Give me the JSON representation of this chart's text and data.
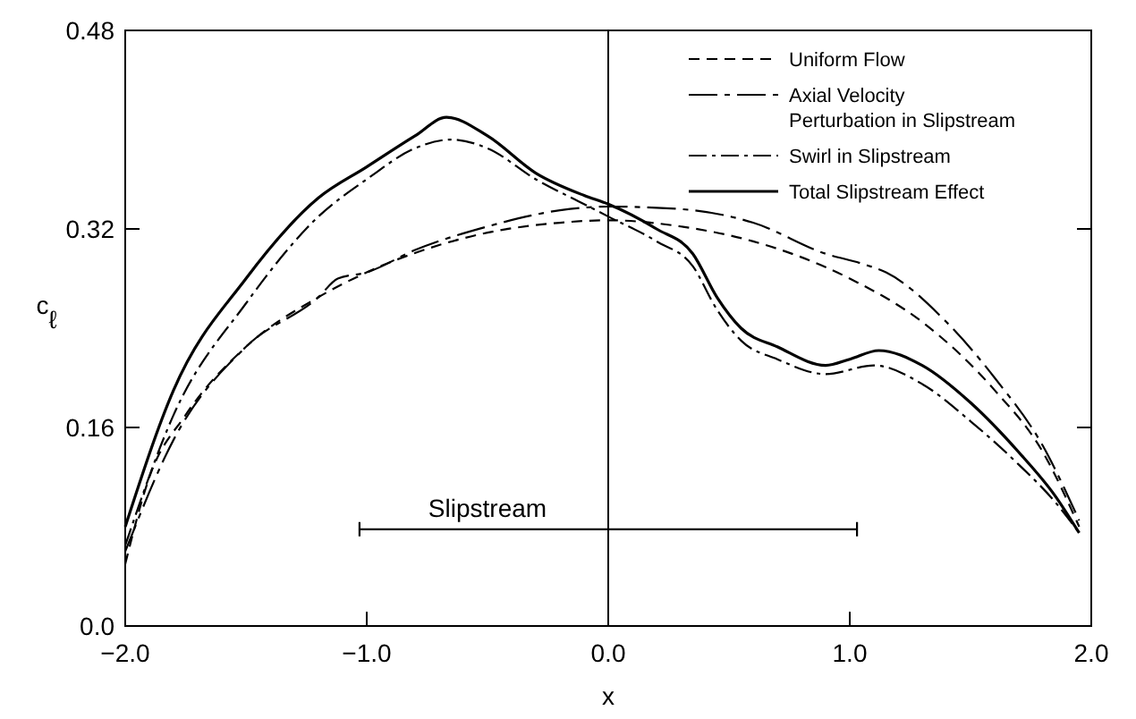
{
  "chart_data": {
    "type": "line",
    "xlabel": "x",
    "ylabel": "c$_{ℓ}$",
    "xlim": [
      -2,
      2
    ],
    "ylim": [
      0,
      0.48
    ],
    "xticks": [
      {
        "value": -2,
        "label": "−2.0"
      },
      {
        "value": -1,
        "label": "−1.0"
      },
      {
        "value": 0,
        "label": "0.0"
      },
      {
        "value": 1,
        "label": "1.0"
      },
      {
        "value": 2,
        "label": "2.0"
      }
    ],
    "yticks": [
      {
        "value": 0,
        "label": "0.0"
      },
      0.16,
      0.32,
      0.48
    ],
    "grid": false,
    "legend": "top right",
    "marker": "none",
    "ref_lines": [
      {
        "axis": "x",
        "value": 0,
        "label": null,
        "color": "#000000"
      }
    ],
    "annotations": [
      {
        "text": "Slipstream",
        "x": -0.5,
        "y": 0.078
      }
    ],
    "series": [
      {
        "color": "#000000",
        "line_style": "solid",
        "x": [
          -1.03,
          1.03
        ],
        "values": [
          0.078,
          0.078
        ]
      },
      {
        "name": "Uniform Flow",
        "color": "#000000",
        "line_style": "dashed",
        "x": [
          -2,
          -1.9,
          -1.75,
          -1.5,
          -1.2,
          -1,
          -0.7,
          -0.5,
          -0.2,
          0,
          0.3,
          0.6,
          1,
          1.3,
          1.6,
          1.8,
          1.95
        ],
        "values": [
          0.05,
          0.12,
          0.17,
          0.225,
          0.265,
          0.285,
          0.307,
          0.317,
          0.325,
          0.327,
          0.322,
          0.31,
          0.28,
          0.245,
          0.19,
          0.14,
          0.08
        ]
      },
      {
        "name": "Axial Velocity\nPerturbation in Slipstream",
        "color": "#000000",
        "line_style": "longdash",
        "x": [
          -2,
          -1.8,
          -1.5,
          -1.2,
          -1.12,
          -1,
          -0.8,
          -0.5,
          -0.2,
          0,
          0.3,
          0.6,
          0.9,
          1.05,
          1.15,
          1.4,
          1.6,
          1.8,
          1.95
        ],
        "values": [
          0.06,
          0.15,
          0.225,
          0.265,
          0.28,
          0.285,
          0.303,
          0.322,
          0.335,
          0.338,
          0.336,
          0.325,
          0.3,
          0.292,
          0.285,
          0.245,
          0.2,
          0.145,
          0.085
        ]
      },
      {
        "name": "Swirl in Slipstream",
        "color": "#000000",
        "line_style": "dashdot",
        "x": [
          -2,
          -1.8,
          -1.5,
          -1.2,
          -1,
          -0.8,
          -0.65,
          -0.5,
          -0.3,
          -0.1,
          0,
          0.2,
          0.35,
          0.45,
          0.55,
          0.7,
          0.9,
          1.1,
          1.3,
          1.5,
          1.7,
          1.85,
          1.95
        ],
        "values": [
          0.065,
          0.17,
          0.26,
          0.33,
          0.36,
          0.385,
          0.392,
          0.385,
          0.36,
          0.34,
          0.33,
          0.31,
          0.29,
          0.255,
          0.23,
          0.215,
          0.203,
          0.21,
          0.195,
          0.165,
          0.13,
          0.1,
          0.075
        ]
      },
      {
        "name": "Total Slipstream Effect",
        "color": "#000000",
        "line_style": "solid",
        "x": [
          -2,
          -1.8,
          -1.5,
          -1.2,
          -1,
          -0.8,
          -0.67,
          -0.5,
          -0.3,
          -0.1,
          0,
          0.2,
          0.35,
          0.45,
          0.55,
          0.7,
          0.9,
          1,
          1.12,
          1.3,
          1.5,
          1.7,
          1.85,
          1.95
        ],
        "values": [
          0.08,
          0.19,
          0.28,
          0.345,
          0.37,
          0.395,
          0.41,
          0.395,
          0.365,
          0.347,
          0.34,
          0.32,
          0.3,
          0.265,
          0.24,
          0.225,
          0.21,
          0.215,
          0.222,
          0.21,
          0.18,
          0.14,
          0.105,
          0.075
        ]
      }
    ]
  }
}
